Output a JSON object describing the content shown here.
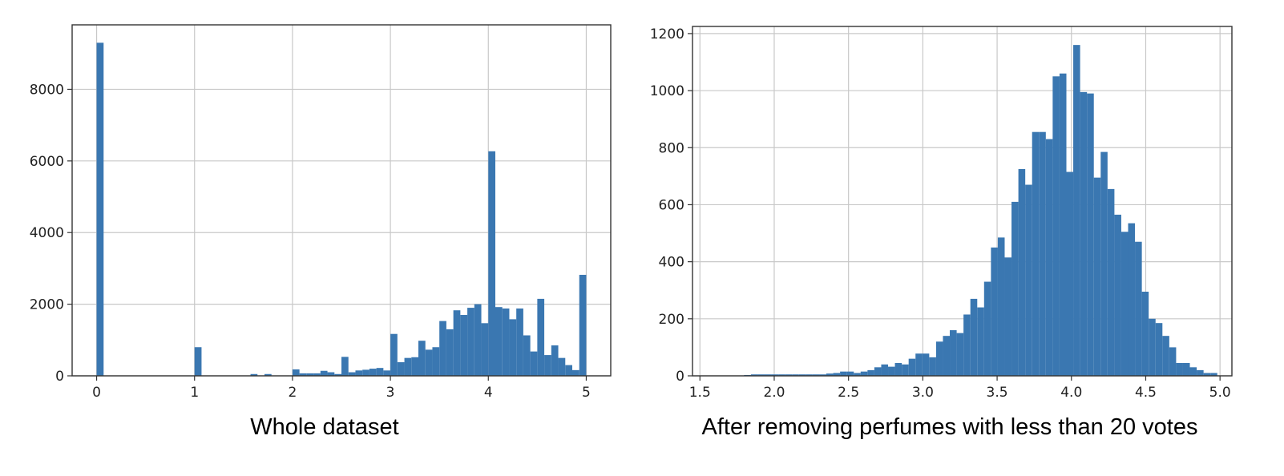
{
  "colors": {
    "bar": "#3a77b1",
    "grid": "#c8c8c8",
    "frame": "#333333",
    "text": "#222222"
  },
  "chart_data": [
    {
      "type": "bar",
      "title": "Whole dataset",
      "xlabel": "",
      "ylabel": "",
      "xlim": [
        -0.25,
        5.25
      ],
      "ylim": [
        0,
        9800
      ],
      "xticks": [
        0,
        1,
        2,
        3,
        4,
        5
      ],
      "xtick_labels": [
        "0",
        "1",
        "2",
        "3",
        "4",
        "5"
      ],
      "yticks": [
        0,
        2000,
        4000,
        6000,
        8000
      ],
      "ytick_labels": [
        "0",
        "2000",
        "4000",
        "6000",
        "8000"
      ],
      "grid": true,
      "bin_width": 0.0714,
      "x": [
        0.0,
        0.0714,
        0.1429,
        0.2143,
        0.2857,
        0.3571,
        0.4286,
        0.5,
        0.5714,
        0.6429,
        0.7143,
        0.7857,
        0.8571,
        0.9286,
        1.0,
        1.0714,
        1.1429,
        1.2143,
        1.2857,
        1.3571,
        1.4286,
        1.5,
        1.5714,
        1.6429,
        1.7143,
        1.7857,
        1.8571,
        1.9286,
        2.0,
        2.0714,
        2.1429,
        2.2143,
        2.2857,
        2.3571,
        2.4286,
        2.5,
        2.5714,
        2.6429,
        2.7143,
        2.7857,
        2.8571,
        2.9286,
        3.0,
        3.0714,
        3.1429,
        3.2143,
        3.2857,
        3.3571,
        3.4286,
        3.5,
        3.5714,
        3.6429,
        3.7143,
        3.7857,
        3.8571,
        3.9286,
        4.0,
        4.0714,
        4.1429,
        4.2143,
        4.2857,
        4.3571,
        4.4286,
        4.5,
        4.5714,
        4.6429,
        4.7143,
        4.7857,
        4.8571,
        4.9286
      ],
      "values": [
        9300,
        0,
        0,
        0,
        0,
        0,
        0,
        0,
        0,
        0,
        0,
        0,
        0,
        0,
        800,
        0,
        0,
        0,
        0,
        0,
        0,
        0,
        50,
        0,
        50,
        0,
        0,
        0,
        180,
        70,
        70,
        70,
        140,
        100,
        50,
        530,
        100,
        150,
        170,
        200,
        220,
        150,
        1170,
        380,
        500,
        520,
        980,
        730,
        800,
        1530,
        1300,
        1830,
        1700,
        1900,
        2000,
        1470,
        6270,
        1920,
        1880,
        1580,
        1880,
        1130,
        680,
        2150,
        580,
        850,
        500,
        300,
        160,
        2820
      ]
    },
    {
      "type": "bar",
      "title": "After removing perfumes with less than 20 votes",
      "xlabel": "",
      "ylabel": "",
      "xlim": [
        1.45,
        5.08
      ],
      "ylim": [
        0,
        1225
      ],
      "xticks": [
        1.5,
        2.0,
        2.5,
        3.0,
        3.5,
        4.0,
        4.5,
        5.0
      ],
      "xtick_labels": [
        "1.5",
        "2.0",
        "2.5",
        "3.0",
        "3.5",
        "4.0",
        "4.5",
        "5.0"
      ],
      "yticks": [
        0,
        200,
        400,
        600,
        800,
        1000,
        1200
      ],
      "ytick_labels": [
        "0",
        "200",
        "400",
        "600",
        "800",
        "1000",
        "1200"
      ],
      "grid": true,
      "bin_width": 0.0462,
      "x": [
        1.52,
        1.5662,
        1.6123,
        1.6585,
        1.7046,
        1.7508,
        1.7969,
        1.8431,
        1.8892,
        1.9354,
        1.9815,
        2.0277,
        2.0738,
        2.12,
        2.1662,
        2.2123,
        2.2585,
        2.3046,
        2.3508,
        2.3969,
        2.4431,
        2.4892,
        2.5354,
        2.5815,
        2.6277,
        2.6738,
        2.72,
        2.7662,
        2.8123,
        2.8585,
        2.9046,
        2.9508,
        2.9969,
        3.0431,
        3.0892,
        3.1354,
        3.1815,
        3.2277,
        3.2738,
        3.32,
        3.3662,
        3.4123,
        3.4585,
        3.5046,
        3.5508,
        3.5969,
        3.6431,
        3.6892,
        3.7354,
        3.7815,
        3.8277,
        3.8738,
        3.92,
        3.9662,
        4.0123,
        4.0585,
        4.1046,
        4.1508,
        4.1969,
        4.2431,
        4.2892,
        4.3354,
        4.3815,
        4.4277,
        4.4738,
        4.52,
        4.5662,
        4.6123,
        4.6585,
        4.7046,
        4.7508,
        4.7969,
        4.8431,
        4.8892,
        4.9354
      ],
      "values": [
        0,
        0,
        0,
        0,
        0,
        0,
        3,
        5,
        5,
        5,
        5,
        5,
        5,
        5,
        5,
        5,
        5,
        5,
        8,
        10,
        15,
        15,
        10,
        15,
        20,
        30,
        40,
        32,
        45,
        40,
        60,
        78,
        78,
        65,
        120,
        140,
        160,
        150,
        215,
        270,
        240,
        330,
        450,
        485,
        415,
        610,
        725,
        670,
        855,
        855,
        830,
        1050,
        1060,
        715,
        1160,
        995,
        990,
        695,
        785,
        655,
        565,
        505,
        535,
        470,
        295,
        200,
        185,
        140,
        100,
        45,
        45,
        30,
        20,
        10,
        10
      ]
    }
  ]
}
